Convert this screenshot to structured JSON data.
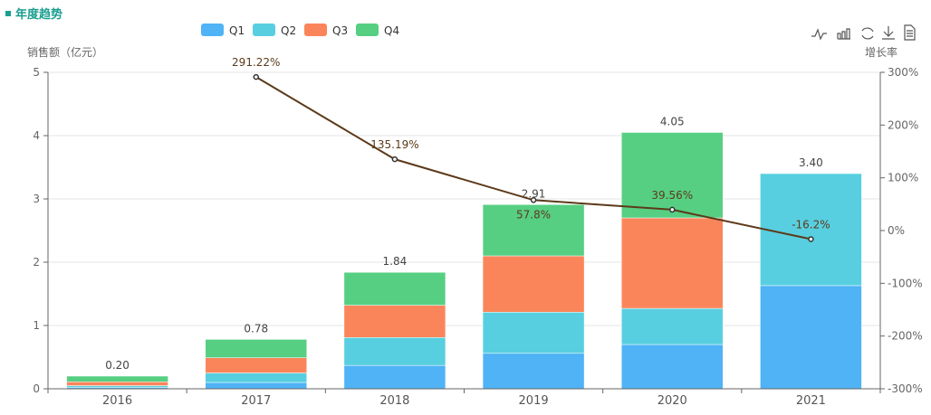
{
  "header": {
    "title": "年度趋势"
  },
  "toolbox": [
    "line-chart-icon",
    "bar-chart-icon",
    "restore-icon",
    "download-icon",
    "data-view-icon"
  ],
  "chart_data": {
    "type": "bar",
    "categories": [
      "2016",
      "2017",
      "2018",
      "2019",
      "2020",
      "2021"
    ],
    "stacked": true,
    "series": [
      {
        "name": "Q1",
        "color": "#4fb3f6",
        "values": [
          0.02,
          0.1,
          0.37,
          0.56,
          0.7,
          1.63
        ]
      },
      {
        "name": "Q2",
        "color": "#58cfe0",
        "values": [
          0.03,
          0.15,
          0.44,
          0.65,
          0.57,
          1.77
        ]
      },
      {
        "name": "Q3",
        "color": "#fb855a",
        "values": [
          0.06,
          0.24,
          0.51,
          0.89,
          1.43,
          0
        ]
      },
      {
        "name": "Q4",
        "color": "#56cf82",
        "values": [
          0.09,
          0.29,
          0.52,
          0.81,
          1.35,
          0
        ]
      }
    ],
    "totals": [
      "0.20",
      "0.78",
      "1.84",
      "2.91",
      "4.05",
      "3.40"
    ],
    "line": {
      "color": "#5c3a1a",
      "values": [
        null,
        291.22,
        135.19,
        57.8,
        39.56,
        -16.2
      ],
      "labels": [
        "",
        "291.22%",
        "135.19%",
        "57.8%",
        "39.56%",
        "-16.2%"
      ]
    },
    "ylabel": "销售额（亿元）",
    "ylim": [
      0,
      5
    ],
    "yticks": [
      "0",
      "1",
      "2",
      "3",
      "4",
      "5"
    ],
    "y2label": "增长率",
    "y2lim": [
      -300,
      300
    ],
    "y2ticks": [
      "-300%",
      "-200%",
      "-100%",
      "0%",
      "100%",
      "200%",
      "300%"
    ],
    "legend": "top-center",
    "grid": true
  }
}
